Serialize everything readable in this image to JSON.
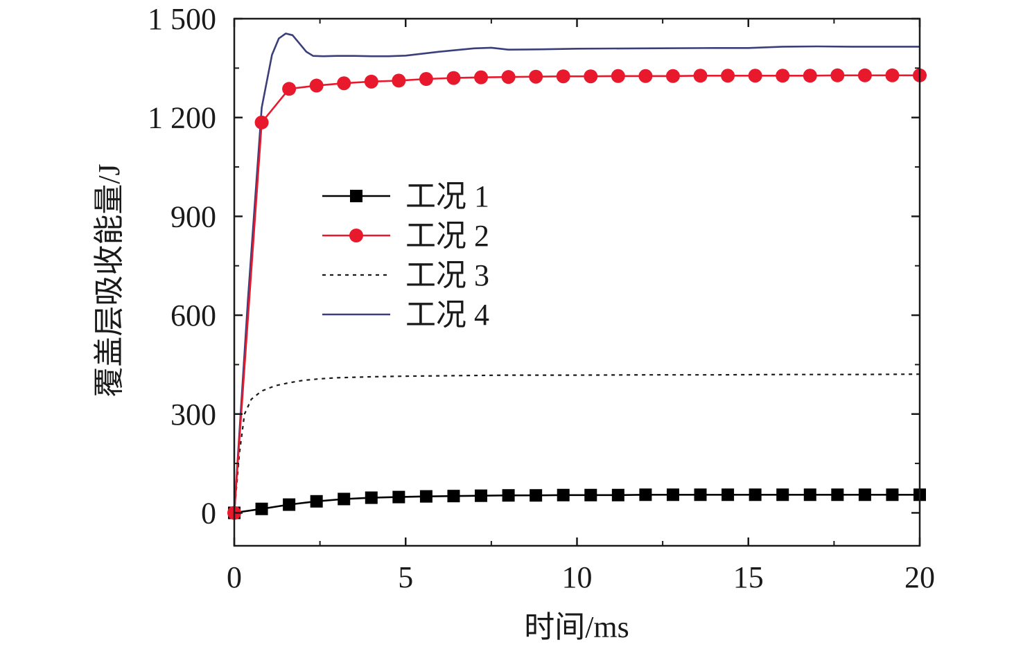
{
  "chart_data": {
    "type": "line",
    "xlabel": "时间/ms",
    "ylabel": "覆盖层吸收能量/J",
    "xlim": [
      0,
      20
    ],
    "ylim": [
      -100,
      1500
    ],
    "xticks": [
      0,
      5,
      10,
      15,
      20
    ],
    "xtick_labels": [
      "0",
      "5",
      "10",
      "15",
      "20"
    ],
    "yticks": [
      0,
      300,
      600,
      900,
      1200,
      1500
    ],
    "ytick_labels": [
      "0",
      "300",
      "600",
      "900",
      "1 200",
      "1 500"
    ],
    "legend_position": "center-left",
    "series": [
      {
        "name": "工况 1",
        "color": "#000000",
        "marker": "square",
        "line_style": "solid",
        "x": [
          0,
          0.8,
          1.6,
          2.4,
          3.2,
          4.0,
          4.8,
          5.6,
          6.4,
          7.2,
          8.0,
          8.8,
          9.6,
          10.4,
          11.2,
          12.0,
          12.8,
          13.6,
          14.4,
          15.2,
          16.0,
          16.8,
          17.6,
          18.4,
          19.2,
          20.0
        ],
        "y": [
          0,
          12,
          25,
          35,
          42,
          46,
          48,
          50,
          51,
          52,
          53,
          53,
          54,
          54,
          54,
          55,
          55,
          55,
          55,
          55,
          55,
          55,
          55,
          55,
          55,
          55
        ]
      },
      {
        "name": "工况 2",
        "color": "#e8192c",
        "marker": "circle",
        "line_style": "solid",
        "x": [
          0,
          0.8,
          1.6,
          2.4,
          3.2,
          4.0,
          4.8,
          5.6,
          6.4,
          7.2,
          8.0,
          8.8,
          9.6,
          10.4,
          11.2,
          12.0,
          12.8,
          13.6,
          14.4,
          15.2,
          16.0,
          16.8,
          17.6,
          18.4,
          19.2,
          20.0
        ],
        "y": [
          0,
          1185,
          1287,
          1297,
          1304,
          1309,
          1312,
          1317,
          1320,
          1322,
          1323,
          1324,
          1325,
          1325,
          1326,
          1326,
          1326,
          1327,
          1327,
          1327,
          1327,
          1327,
          1328,
          1328,
          1328,
          1328
        ]
      },
      {
        "name": "工况 3",
        "color": "#1a1a1a",
        "marker": "none",
        "line_style": "dotted",
        "x": [
          0,
          0.15,
          0.3,
          0.5,
          0.8,
          1.2,
          1.6,
          2.0,
          2.5,
          3.0,
          4.0,
          5.0,
          6.0,
          7.0,
          8.0,
          10.0,
          12.0,
          14.0,
          16.0,
          18.0,
          20.0
        ],
        "y": [
          0,
          180,
          300,
          345,
          370,
          386,
          395,
          402,
          407,
          410,
          413,
          415,
          416,
          417,
          418,
          418,
          419,
          419,
          420,
          420,
          421
        ]
      },
      {
        "name": "工况 4",
        "color": "#3a3f7a",
        "marker": "none",
        "line_style": "solid",
        "x": [
          0,
          0.4,
          0.8,
          1.1,
          1.3,
          1.5,
          1.7,
          1.9,
          2.1,
          2.3,
          2.6,
          3.0,
          3.5,
          4.0,
          4.5,
          5.0,
          6.0,
          7.0,
          7.5,
          8.0,
          9.0,
          10.0,
          12.0,
          14.0,
          15.0,
          16.0,
          17.0,
          18.0,
          19.0,
          20.0
        ],
        "y": [
          0,
          650,
          1230,
          1390,
          1440,
          1455,
          1450,
          1425,
          1400,
          1387,
          1386,
          1387,
          1387,
          1386,
          1386,
          1388,
          1400,
          1410,
          1412,
          1406,
          1407,
          1409,
          1410,
          1411,
          1411,
          1415,
          1416,
          1415,
          1415,
          1415
        ]
      }
    ]
  }
}
